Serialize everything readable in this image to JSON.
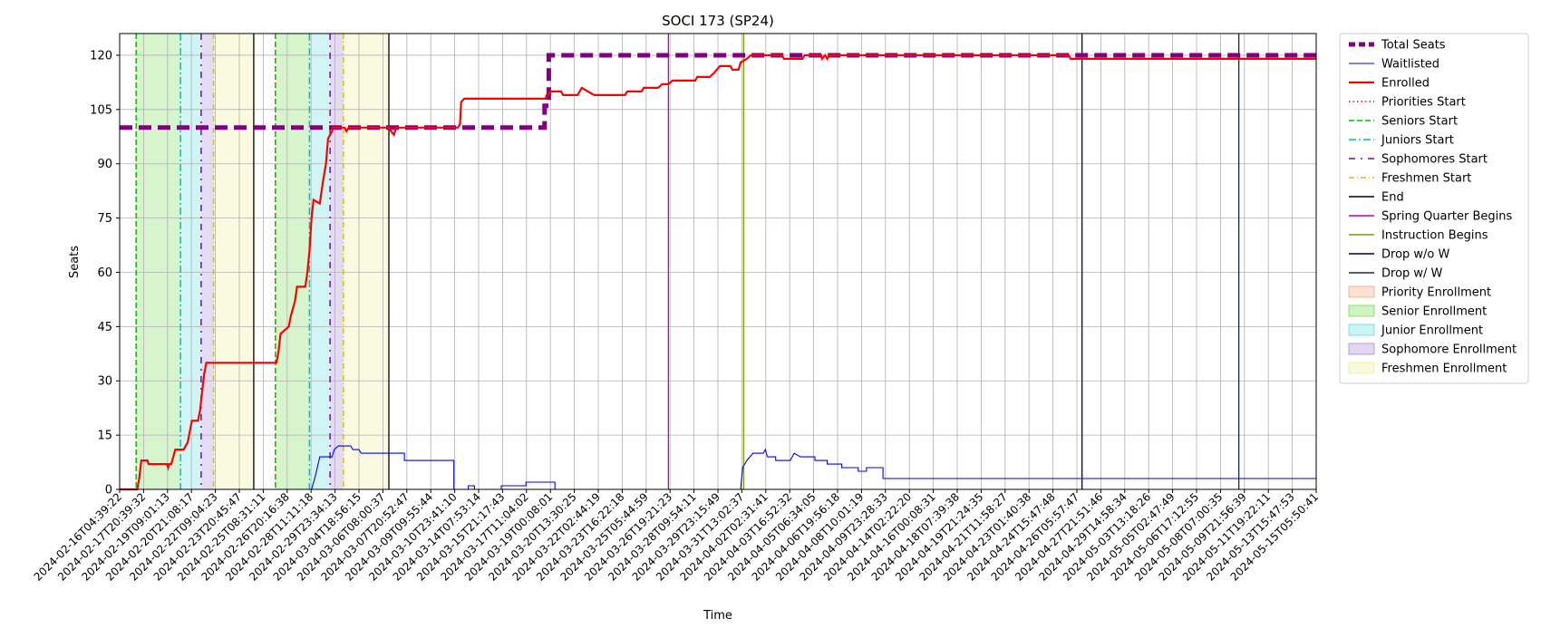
{
  "chart_data": {
    "type": "line",
    "title": "SOCI 173 (SP24)",
    "xlabel": "Time",
    "ylabel": "Seats",
    "ylim": [
      0,
      126
    ],
    "yticks": [
      0,
      15,
      30,
      45,
      60,
      75,
      90,
      105,
      120
    ],
    "x_range_index": [
      0,
      58
    ],
    "xtick_labels": [
      "2024-02-16T04:39:22",
      "2024-02-17T20:39:32",
      "2024-02-19T09:01:13",
      "2024-02-20T21:08:17",
      "2024-02-22T09:04:23",
      "2024-02-23T20:45:47",
      "2024-02-25T08:31:11",
      "2024-02-26T20:16:38",
      "2024-02-28T11:11:18",
      "2024-02-29T23:34:13",
      "2024-03-04T18:56:15",
      "2024-03-06T08:00:37",
      "2024-03-07T20:52:47",
      "2024-03-09T09:55:44",
      "2024-03-10T23:41:10",
      "2024-03-14T07:53:14",
      "2024-03-15T21:17:43",
      "2024-03-17T11:04:02",
      "2024-03-19T00:08:01",
      "2024-03-20T13:30:25",
      "2024-03-22T02:44:19",
      "2024-03-23T16:22:18",
      "2024-03-25T05:44:59",
      "2024-03-26T19:21:23",
      "2024-03-28T09:54:11",
      "2024-03-29T23:15:49",
      "2024-03-31T13:02:37",
      "2024-04-02T02:31:41",
      "2024-04-03T16:52:32",
      "2024-04-05T06:34:05",
      "2024-04-06T19:56:18",
      "2024-04-08T10:01:19",
      "2024-04-09T23:28:33",
      "2024-04-14T02:22:20",
      "2024-04-16T00:08:31",
      "2024-04-18T07:39:38",
      "2024-04-19T21:24:35",
      "2024-04-21T11:58:27",
      "2024-04-23T01:40:38",
      "2024-04-24T15:47:48",
      "2024-04-26T05:57:47",
      "2024-04-27T21:51:46",
      "2024-04-29T14:58:34",
      "2024-05-03T13:18:26",
      "2024-05-05T02:47:49",
      "2024-05-06T17:12:55",
      "2024-05-08T07:00:35",
      "2024-05-09T21:56:39",
      "2024-05-11T19:22:11",
      "2024-05-13T15:47:53",
      "2024-05-15T05:50:41"
    ],
    "series": [
      {
        "name": "Total Seats",
        "color": "#800080",
        "style": "dashed-thick",
        "points": [
          [
            0,
            100
          ],
          [
            20.6,
            100
          ],
          [
            20.6,
            106
          ],
          [
            20.8,
            106
          ],
          [
            20.8,
            120
          ],
          [
            58,
            120
          ]
        ]
      },
      {
        "name": "Waitlisted",
        "color": "#0000ff",
        "style": "solid-thin",
        "points": [
          [
            0,
            0
          ],
          [
            9.3,
            0
          ],
          [
            9.5,
            4
          ],
          [
            9.7,
            9
          ],
          [
            10.3,
            9
          ],
          [
            10.4,
            11
          ],
          [
            10.6,
            12
          ],
          [
            11.2,
            12
          ],
          [
            11.3,
            11
          ],
          [
            11.6,
            11
          ],
          [
            11.7,
            10
          ],
          [
            13.8,
            10
          ],
          [
            13.8,
            8
          ],
          [
            16.2,
            8
          ],
          [
            16.2,
            0
          ],
          [
            16.9,
            0
          ],
          [
            16.9,
            1
          ],
          [
            17.2,
            1
          ],
          [
            17.2,
            0
          ],
          [
            18.5,
            0
          ],
          [
            18.5,
            1
          ],
          [
            19.7,
            1
          ],
          [
            19.7,
            2
          ],
          [
            21.1,
            2
          ],
          [
            21.1,
            0
          ],
          [
            30.1,
            0
          ],
          [
            30.2,
            6
          ],
          [
            30.4,
            8
          ],
          [
            30.7,
            10
          ],
          [
            31.2,
            10
          ],
          [
            31.3,
            11
          ],
          [
            31.4,
            9
          ],
          [
            31.8,
            9
          ],
          [
            31.8,
            8
          ],
          [
            32.5,
            8
          ],
          [
            32.7,
            10
          ],
          [
            33,
            9
          ],
          [
            33.7,
            9
          ],
          [
            33.7,
            8
          ],
          [
            34.3,
            8
          ],
          [
            34.3,
            7
          ],
          [
            35,
            7
          ],
          [
            35,
            6
          ],
          [
            35.8,
            6
          ],
          [
            35.8,
            5
          ],
          [
            36.2,
            5
          ],
          [
            36.2,
            6
          ],
          [
            37,
            6
          ],
          [
            37,
            3
          ],
          [
            58,
            3
          ]
        ]
      },
      {
        "name": "Enrolled",
        "color": "#ff0000",
        "style": "solid-thick",
        "points": [
          [
            0,
            0
          ],
          [
            0.85,
            0
          ],
          [
            0.95,
            3
          ],
          [
            1.05,
            8
          ],
          [
            1.35,
            8
          ],
          [
            1.4,
            7
          ],
          [
            2.3,
            7
          ],
          [
            2.35,
            6
          ],
          [
            2.4,
            7
          ],
          [
            2.5,
            7
          ],
          [
            2.6,
            9
          ],
          [
            2.7,
            11
          ],
          [
            3.1,
            11
          ],
          [
            3.3,
            13
          ],
          [
            3.4,
            16
          ],
          [
            3.5,
            19
          ],
          [
            3.8,
            19
          ],
          [
            3.9,
            22
          ],
          [
            4.0,
            27
          ],
          [
            4.1,
            32
          ],
          [
            4.2,
            35
          ],
          [
            7.6,
            35
          ],
          [
            7.7,
            38
          ],
          [
            7.8,
            43
          ],
          [
            8.0,
            44
          ],
          [
            8.2,
            45
          ],
          [
            8.3,
            48
          ],
          [
            8.5,
            52
          ],
          [
            8.6,
            56
          ],
          [
            9.0,
            56
          ],
          [
            9.1,
            60
          ],
          [
            9.2,
            66
          ],
          [
            9.3,
            75
          ],
          [
            9.4,
            80
          ],
          [
            9.7,
            79
          ],
          [
            9.85,
            85
          ],
          [
            10.0,
            90
          ],
          [
            10.1,
            97
          ],
          [
            10.3,
            99
          ],
          [
            10.35,
            100
          ],
          [
            10.9,
            100
          ],
          [
            11.0,
            99
          ],
          [
            11.1,
            100
          ],
          [
            11.2,
            100
          ],
          [
            13.1,
            100
          ],
          [
            13.15,
            99
          ],
          [
            13.3,
            98
          ],
          [
            13.4,
            100
          ],
          [
            16.4,
            100
          ],
          [
            16.5,
            101
          ],
          [
            16.55,
            107
          ],
          [
            16.7,
            108
          ],
          [
            20.65,
            108
          ],
          [
            20.7,
            109
          ],
          [
            20.9,
            110
          ],
          [
            21.4,
            110
          ],
          [
            21.5,
            109
          ],
          [
            22.2,
            109
          ],
          [
            22.3,
            110
          ],
          [
            22.4,
            111
          ],
          [
            22.7,
            110
          ],
          [
            23.0,
            109
          ],
          [
            24.5,
            109
          ],
          [
            24.6,
            110
          ],
          [
            25.3,
            110
          ],
          [
            25.4,
            111
          ],
          [
            26.1,
            111
          ],
          [
            26.3,
            112
          ],
          [
            26.6,
            112
          ],
          [
            26.8,
            113
          ],
          [
            27.9,
            113
          ],
          [
            28.0,
            114
          ],
          [
            28.6,
            114
          ],
          [
            28.8,
            115
          ],
          [
            29.1,
            117
          ],
          [
            29.6,
            117
          ],
          [
            29.7,
            116
          ],
          [
            30.0,
            116
          ],
          [
            30.1,
            118
          ],
          [
            30.4,
            119
          ],
          [
            30.6,
            120
          ],
          [
            32.1,
            120
          ],
          [
            32.2,
            119
          ],
          [
            33.1,
            119
          ],
          [
            33.2,
            120
          ],
          [
            34.0,
            120
          ],
          [
            34.05,
            119
          ],
          [
            34.2,
            120
          ],
          [
            34.3,
            119
          ],
          [
            34.4,
            120
          ],
          [
            46.0,
            120
          ],
          [
            46.1,
            119
          ],
          [
            58,
            119
          ]
        ]
      }
    ],
    "vertical_markers": [
      {
        "name": "Priorities Start",
        "color": "#ff0000",
        "style": "dotted",
        "x": [
          0.8,
          7.55
        ]
      },
      {
        "name": "Seniors Start",
        "color": "#00c000",
        "style": "dashed",
        "x": [
          0.8,
          7.55
        ]
      },
      {
        "name": "Juniors Start",
        "color": "#00bfbf",
        "style": "dashdot",
        "x": [
          2.95,
          9.2
        ]
      },
      {
        "name": "Sophomores Start",
        "color": "#6a0dad",
        "style": "dashdot-loose",
        "x": [
          3.95,
          10.2
        ]
      },
      {
        "name": "Freshmen Start",
        "color": "#d4c400",
        "style": "dashdot-thin",
        "x": [
          4.55,
          10.85
        ]
      },
      {
        "name": "End",
        "color": "#000000",
        "style": "solid",
        "x": [
          6.5,
          13.05
        ]
      },
      {
        "name": "Spring Quarter Begins",
        "color": "#c000c0",
        "style": "solid",
        "x": [
          26.6
        ]
      },
      {
        "name": "Instruction Begins",
        "color": "#7a9a00",
        "style": "solid",
        "x": [
          30.25
        ]
      },
      {
        "name": "Drop w/o W",
        "color": "#000060",
        "style": "solid",
        "x": [
          46.65
        ]
      },
      {
        "name": "Drop w/ W",
        "color": "#1c2a3a",
        "style": "solid",
        "x": [
          54.25
        ]
      }
    ],
    "shaded_regions": [
      {
        "name": "Priority Enrollment",
        "color": "#f4a582",
        "ranges": [
          [
            0.8,
            0.85
          ],
          [
            7.55,
            7.6
          ]
        ]
      },
      {
        "name": "Senior Enrollment",
        "color": "#77dd55",
        "ranges": [
          [
            0.85,
            2.95
          ],
          [
            7.6,
            9.2
          ]
        ]
      },
      {
        "name": "Junior Enrollment",
        "color": "#66dddd",
        "ranges": [
          [
            2.95,
            3.95
          ],
          [
            9.2,
            10.2
          ]
        ]
      },
      {
        "name": "Sophomore Enrollment",
        "color": "#a98bd6",
        "ranges": [
          [
            3.95,
            4.55
          ],
          [
            10.2,
            10.85
          ]
        ]
      },
      {
        "name": "Freshmen Enrollment",
        "color": "#eeee99",
        "ranges": [
          [
            4.55,
            6.5
          ],
          [
            10.85,
            13.05
          ]
        ]
      }
    ],
    "legend": {
      "placement": "outside-right-top",
      "entries": [
        {
          "label": "Total Seats",
          "color": "#800080",
          "kind": "line",
          "style": "dashed-thick"
        },
        {
          "label": "Waitlisted",
          "color": "#0000ff",
          "kind": "line",
          "style": "solid-thin"
        },
        {
          "label": "Enrolled",
          "color": "#ff0000",
          "kind": "line",
          "style": "solid-thick"
        },
        {
          "label": "Priorities Start",
          "color": "#ff0000",
          "kind": "line",
          "style": "dotted"
        },
        {
          "label": "Seniors Start",
          "color": "#00c000",
          "kind": "line",
          "style": "dashed"
        },
        {
          "label": "Juniors Start",
          "color": "#00bfbf",
          "kind": "line",
          "style": "dashdot"
        },
        {
          "label": "Sophomores Start",
          "color": "#6a0dad",
          "kind": "line",
          "style": "dashdot-loose"
        },
        {
          "label": "Freshmen Start",
          "color": "#d4c400",
          "kind": "line",
          "style": "dashdot-thin"
        },
        {
          "label": "End",
          "color": "#000000",
          "kind": "line",
          "style": "solid"
        },
        {
          "label": "Spring Quarter Begins",
          "color": "#c000c0",
          "kind": "line",
          "style": "solid"
        },
        {
          "label": "Instruction Begins",
          "color": "#7a9a00",
          "kind": "line",
          "style": "solid"
        },
        {
          "label": "Drop w/o W",
          "color": "#000060",
          "kind": "line",
          "style": "solid"
        },
        {
          "label": "Drop w/ W",
          "color": "#1c2a3a",
          "kind": "line",
          "style": "solid"
        },
        {
          "label": "Priority Enrollment",
          "color": "#f4a582",
          "kind": "patch"
        },
        {
          "label": "Senior Enrollment",
          "color": "#77dd55",
          "kind": "patch"
        },
        {
          "label": "Junior Enrollment",
          "color": "#66dddd",
          "kind": "patch"
        },
        {
          "label": "Sophomore Enrollment",
          "color": "#a98bd6",
          "kind": "patch"
        },
        {
          "label": "Freshmen Enrollment",
          "color": "#eeee99",
          "kind": "patch"
        }
      ]
    },
    "grid": true
  }
}
